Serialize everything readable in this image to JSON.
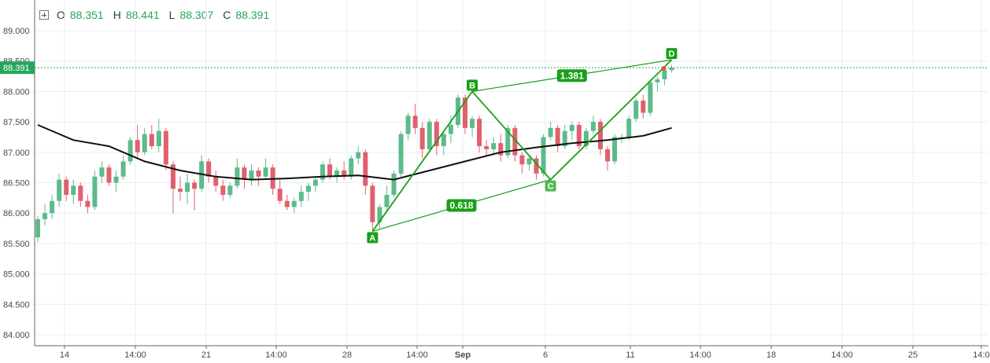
{
  "legend": {
    "o_label": "O",
    "o_value": "88.351",
    "h_label": "H",
    "h_value": "88.441",
    "l_label": "L",
    "l_value": "88.307",
    "c_label": "C",
    "c_value": "88.391"
  },
  "colors": {
    "up": "#5dbb8a",
    "down": "#e0606e",
    "ma": "#111111",
    "pattern": "#1aa01a",
    "price_line": "#26a65b",
    "grid": "#e9eef2"
  },
  "chart_data": {
    "type": "candlestick",
    "ylim": [
      83.9,
      89.3
    ],
    "y_ticks": [
      "84.000",
      "84.500",
      "85.000",
      "85.500",
      "86.000",
      "86.500",
      "87.000",
      "87.500",
      "88.000",
      "88.500",
      "89.000"
    ],
    "x_ticks": [
      "14",
      "14:00",
      "21",
      "14:00",
      "28",
      "14:00",
      "Sep",
      "6",
      "11",
      "14:00",
      "18",
      "14:00",
      "25",
      "14:0"
    ],
    "last_price": "88.391",
    "candles": [
      [
        85.6,
        85.95,
        85.52,
        85.9
      ],
      [
        85.9,
        86.15,
        85.8,
        86.0
      ],
      [
        86.0,
        86.3,
        85.9,
        86.2
      ],
      [
        86.2,
        86.65,
        86.1,
        86.55
      ],
      [
        86.55,
        86.6,
        86.2,
        86.3
      ],
      [
        86.3,
        86.55,
        86.15,
        86.45
      ],
      [
        86.45,
        86.5,
        86.1,
        86.2
      ],
      [
        86.2,
        86.3,
        86.0,
        86.1
      ],
      [
        86.1,
        86.7,
        86.05,
        86.6
      ],
      [
        86.6,
        86.85,
        86.5,
        86.75
      ],
      [
        86.75,
        86.8,
        86.45,
        86.5
      ],
      [
        86.5,
        86.7,
        86.35,
        86.6
      ],
      [
        86.6,
        86.95,
        86.55,
        86.85
      ],
      [
        86.85,
        87.25,
        86.8,
        87.2
      ],
      [
        87.2,
        87.45,
        86.9,
        87.0
      ],
      [
        87.0,
        87.4,
        86.95,
        87.3
      ],
      [
        87.3,
        87.45,
        87.05,
        87.1
      ],
      [
        87.1,
        87.55,
        87.0,
        87.35
      ],
      [
        87.35,
        87.4,
        86.7,
        86.8
      ],
      [
        86.8,
        86.85,
        86.0,
        86.4
      ],
      [
        86.4,
        86.6,
        86.2,
        86.35
      ],
      [
        86.35,
        86.65,
        86.15,
        86.5
      ],
      [
        86.5,
        86.55,
        86.05,
        86.4
      ],
      [
        86.4,
        86.95,
        86.35,
        86.85
      ],
      [
        86.85,
        86.9,
        86.5,
        86.6
      ],
      [
        86.6,
        86.7,
        86.35,
        86.45
      ],
      [
        86.45,
        86.55,
        86.2,
        86.3
      ],
      [
        86.3,
        86.5,
        86.25,
        86.45
      ],
      [
        86.45,
        86.9,
        86.4,
        86.75
      ],
      [
        86.75,
        86.8,
        86.4,
        86.55
      ],
      [
        86.55,
        86.8,
        86.45,
        86.7
      ],
      [
        86.7,
        86.75,
        86.45,
        86.6
      ],
      [
        86.6,
        86.9,
        86.55,
        86.75
      ],
      [
        86.75,
        86.8,
        86.3,
        86.4
      ],
      [
        86.4,
        86.55,
        86.15,
        86.2
      ],
      [
        86.2,
        86.3,
        86.05,
        86.1
      ],
      [
        86.1,
        86.25,
        86.0,
        86.2
      ],
      [
        86.2,
        86.45,
        86.1,
        86.35
      ],
      [
        86.35,
        86.5,
        86.2,
        86.45
      ],
      [
        86.45,
        86.6,
        86.35,
        86.55
      ],
      [
        86.55,
        86.85,
        86.5,
        86.8
      ],
      [
        86.8,
        86.9,
        86.55,
        86.6
      ],
      [
        86.6,
        86.75,
        86.5,
        86.7
      ],
      [
        86.7,
        86.85,
        86.55,
        86.6
      ],
      [
        86.6,
        86.95,
        86.55,
        86.9
      ],
      [
        86.9,
        87.1,
        86.8,
        87.0
      ],
      [
        87.0,
        87.05,
        86.3,
        86.45
      ],
      [
        86.45,
        86.5,
        85.7,
        85.85
      ],
      [
        85.85,
        86.15,
        85.75,
        86.1
      ],
      [
        86.1,
        86.45,
        86.0,
        86.3
      ],
      [
        86.3,
        86.7,
        86.25,
        86.65
      ],
      [
        86.65,
        87.35,
        86.6,
        87.3
      ],
      [
        87.3,
        87.65,
        87.2,
        87.6
      ],
      [
        87.6,
        87.8,
        87.3,
        87.4
      ],
      [
        87.4,
        87.5,
        86.9,
        87.05
      ],
      [
        87.05,
        87.55,
        87.0,
        87.5
      ],
      [
        87.5,
        87.55,
        86.95,
        87.1
      ],
      [
        87.1,
        87.35,
        86.95,
        87.3
      ],
      [
        87.3,
        87.6,
        87.15,
        87.45
      ],
      [
        87.45,
        87.95,
        87.4,
        87.9
      ],
      [
        87.9,
        87.95,
        87.3,
        87.4
      ],
      [
        87.4,
        87.6,
        87.25,
        87.55
      ],
      [
        87.55,
        87.6,
        87.0,
        87.1
      ],
      [
        87.1,
        87.2,
        86.95,
        87.05
      ],
      [
        87.05,
        87.25,
        86.95,
        87.15
      ],
      [
        87.15,
        87.3,
        86.85,
        86.95
      ],
      [
        86.95,
        87.45,
        86.9,
        87.4
      ],
      [
        87.4,
        87.45,
        86.85,
        86.95
      ],
      [
        86.95,
        87.0,
        86.65,
        86.8
      ],
      [
        86.8,
        86.95,
        86.7,
        86.9
      ],
      [
        86.9,
        86.95,
        86.55,
        86.65
      ],
      [
        86.65,
        87.3,
        86.6,
        87.25
      ],
      [
        87.25,
        87.5,
        87.2,
        87.4
      ],
      [
        87.4,
        87.45,
        87.0,
        87.1
      ],
      [
        87.1,
        87.45,
        87.05,
        87.35
      ],
      [
        87.35,
        87.5,
        87.2,
        87.45
      ],
      [
        87.45,
        87.5,
        87.05,
        87.1
      ],
      [
        87.1,
        87.4,
        87.05,
        87.35
      ],
      [
        87.35,
        87.6,
        87.3,
        87.5
      ],
      [
        87.5,
        87.55,
        86.95,
        87.05
      ],
      [
        87.05,
        87.1,
        86.7,
        86.85
      ],
      [
        86.85,
        87.3,
        86.8,
        87.25
      ],
      [
        87.25,
        87.3,
        87.15,
        87.25
      ],
      [
        87.25,
        87.6,
        87.2,
        87.55
      ],
      [
        87.55,
        87.9,
        87.5,
        87.85
      ],
      [
        87.85,
        87.95,
        87.55,
        87.65
      ],
      [
        87.65,
        88.2,
        87.6,
        88.15
      ],
      [
        88.15,
        88.25,
        88.0,
        88.2
      ],
      [
        88.2,
        88.4,
        88.1,
        88.35
      ],
      [
        88.351,
        88.441,
        88.307,
        88.391
      ]
    ],
    "moving_average": [
      [
        0,
        87.45
      ],
      [
        5,
        87.2
      ],
      [
        10,
        87.1
      ],
      [
        15,
        86.85
      ],
      [
        20,
        86.7
      ],
      [
        25,
        86.6
      ],
      [
        30,
        86.55
      ],
      [
        35,
        86.57
      ],
      [
        40,
        86.6
      ],
      [
        45,
        86.62
      ],
      [
        50,
        86.55
      ],
      [
        55,
        86.7
      ],
      [
        60,
        86.85
      ],
      [
        65,
        87.0
      ],
      [
        70,
        87.08
      ],
      [
        75,
        87.15
      ],
      [
        80,
        87.2
      ],
      [
        85,
        87.27
      ],
      [
        89,
        87.4
      ]
    ],
    "harmonic_pattern": {
      "points": [
        {
          "label": "A",
          "idx": 47,
          "price": 85.7
        },
        {
          "label": "B",
          "idx": 61,
          "price": 88.0
        },
        {
          "label": "C",
          "idx": 72,
          "price": 86.55
        },
        {
          "label": "D",
          "idx": 89,
          "price": 88.52
        }
      ],
      "ratios": [
        "0.618",
        "1.381"
      ]
    }
  }
}
